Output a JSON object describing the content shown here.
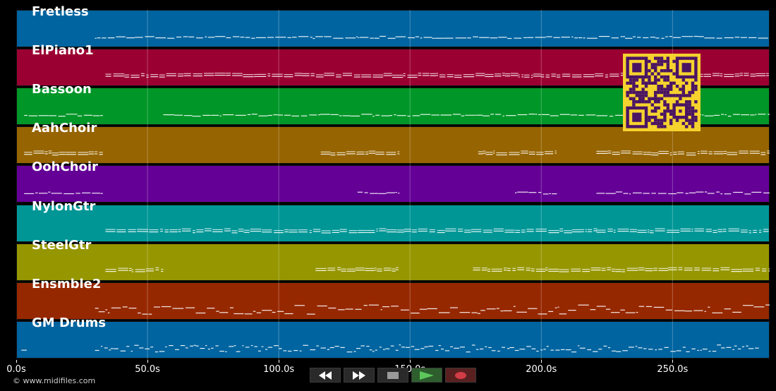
{
  "timeline": {
    "duration_s": 287,
    "ticks": [
      {
        "value": 0,
        "label": "0.0s"
      },
      {
        "value": 50,
        "label": "50.0s"
      },
      {
        "value": 100,
        "label": "100.0s"
      },
      {
        "value": 150,
        "label": "150.0s"
      },
      {
        "value": 200,
        "label": "200.0s"
      },
      {
        "value": 250,
        "label": "250.0s"
      }
    ]
  },
  "tracks": [
    {
      "name": "Fretless",
      "color": "#0064A0",
      "active": [
        [
          30,
          287
        ]
      ],
      "style": "line"
    },
    {
      "name": "ElPiano1",
      "color": "#9B0032",
      "active": [
        [
          34,
          287
        ]
      ],
      "style": "double"
    },
    {
      "name": "Bassoon",
      "color": "#009628",
      "active": [
        [
          3,
          33
        ],
        [
          56,
          287
        ]
      ],
      "style": "line"
    },
    {
      "name": "AahChoir",
      "color": "#966400",
      "active": [
        [
          3,
          33
        ],
        [
          116,
          146
        ],
        [
          176,
          206
        ],
        [
          221,
          287
        ]
      ],
      "style": "double"
    },
    {
      "name": "OohChoir",
      "color": "#640096",
      "active": [
        [
          3,
          33
        ],
        [
          130,
          146
        ],
        [
          190,
          206
        ],
        [
          221,
          287
        ]
      ],
      "style": "line"
    },
    {
      "name": "NylonGtr",
      "color": "#009696",
      "active": [
        [
          34,
          222
        ],
        [
          221,
          287
        ]
      ],
      "style": "double"
    },
    {
      "name": "SteelGtr",
      "color": "#969600",
      "active": [
        [
          34,
          56
        ],
        [
          114,
          146
        ],
        [
          174,
          287
        ]
      ],
      "style": "double"
    },
    {
      "name": "Ensmble2",
      "color": "#962800",
      "active": [
        [
          30,
          287
        ]
      ],
      "style": "stack"
    },
    {
      "name": "GM Drums",
      "color": "#0064A0",
      "active": [
        [
          2,
          4
        ],
        [
          30,
          283
        ]
      ],
      "style": "dense"
    }
  ],
  "transport": {
    "rewind": "rewind-icon",
    "fast_forward": "fast-forward-icon",
    "stop": "stop-icon",
    "play": "play-icon",
    "record": "record-icon"
  },
  "copyright": "© www.midifiles.com"
}
